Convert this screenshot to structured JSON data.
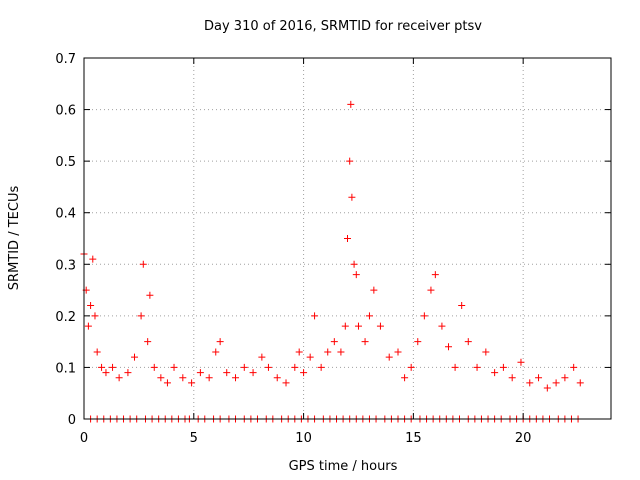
{
  "chart_data": {
    "type": "scatter",
    "title": "Day 310 of 2016, SRMTID for receiver ptsv",
    "xlabel": "GPS time / hours",
    "ylabel": "SRMTID / TECUs",
    "xlim": [
      0,
      24
    ],
    "ylim": [
      0,
      0.7
    ],
    "xticks": [
      0,
      5,
      10,
      15,
      20
    ],
    "yticks": [
      0,
      0.1,
      0.2,
      0.3,
      0.4,
      0.5,
      0.6,
      0.7
    ],
    "xtick_labels": [
      "0",
      "5",
      "10",
      "15",
      "20"
    ],
    "ytick_labels": [
      "0",
      "0.1",
      "0.2",
      "0.3",
      "0.4",
      "0.5",
      "0.6",
      "0.7"
    ],
    "grid": true,
    "marker": "+",
    "color": "#ff0000",
    "series": [
      {
        "name": "SRMTID",
        "x": [
          0.0,
          0.1,
          0.2,
          0.3,
          0.4,
          0.5,
          0.6,
          0.8,
          1.0,
          1.3,
          1.6,
          2.0,
          2.3,
          2.6,
          2.7,
          2.9,
          3.0,
          3.2,
          3.5,
          3.8,
          4.1,
          4.5,
          4.9,
          5.3,
          5.7,
          6.0,
          6.2,
          6.5,
          6.9,
          7.3,
          7.7,
          8.1,
          8.4,
          8.8,
          9.2,
          9.6,
          9.8,
          10.0,
          10.3,
          10.5,
          10.8,
          11.1,
          11.4,
          11.7,
          11.9,
          12.0,
          12.1,
          12.15,
          12.2,
          12.3,
          12.4,
          12.5,
          12.8,
          13.0,
          13.2,
          13.5,
          13.9,
          14.3,
          14.6,
          14.9,
          15.2,
          15.5,
          15.8,
          16.0,
          16.3,
          16.6,
          16.9,
          17.2,
          17.5,
          17.9,
          18.3,
          18.7,
          19.1,
          19.5,
          19.9,
          20.3,
          20.7,
          21.1,
          21.5,
          21.9,
          22.3,
          22.6
        ],
        "y": [
          0.32,
          0.25,
          0.18,
          0.22,
          0.31,
          0.2,
          0.13,
          0.1,
          0.09,
          0.1,
          0.08,
          0.09,
          0.12,
          0.2,
          0.3,
          0.15,
          0.24,
          0.1,
          0.08,
          0.07,
          0.1,
          0.08,
          0.07,
          0.09,
          0.08,
          0.13,
          0.15,
          0.09,
          0.08,
          0.1,
          0.09,
          0.12,
          0.1,
          0.08,
          0.07,
          0.1,
          0.13,
          0.09,
          0.12,
          0.2,
          0.1,
          0.13,
          0.15,
          0.13,
          0.18,
          0.35,
          0.5,
          0.61,
          0.43,
          0.3,
          0.28,
          0.18,
          0.15,
          0.2,
          0.25,
          0.18,
          0.12,
          0.13,
          0.08,
          0.1,
          0.15,
          0.2,
          0.25,
          0.28,
          0.18,
          0.14,
          0.1,
          0.22,
          0.15,
          0.1,
          0.13,
          0.09,
          0.1,
          0.08,
          0.11,
          0.07,
          0.08,
          0.06,
          0.07,
          0.08,
          0.1,
          0.07
        ]
      }
    ],
    "zero_points_x": [
      0.3,
      0.6,
      0.9,
      1.2,
      1.5,
      1.8,
      2.1,
      2.4,
      2.8,
      3.1,
      3.4,
      3.7,
      4.0,
      4.3,
      4.6,
      4.8,
      5.2,
      5.5,
      5.9,
      6.2,
      6.6,
      6.9,
      7.3,
      7.6,
      7.9,
      8.3,
      8.6,
      9.0,
      9.3,
      9.6,
      9.9,
      10.2,
      10.5,
      10.9,
      11.2,
      11.5,
      11.8,
      12.1,
      12.4,
      12.7,
      13.0,
      13.3,
      13.7,
      14.0,
      14.3,
      14.6,
      14.9,
      15.3,
      15.6,
      15.9,
      16.2,
      16.5,
      16.8,
      17.1,
      17.5,
      17.8,
      18.1,
      18.4,
      18.7,
      19.0,
      19.4,
      19.7,
      20.0,
      20.3,
      20.6,
      20.9,
      21.2,
      21.6,
      21.9,
      22.2,
      22.5
    ]
  }
}
